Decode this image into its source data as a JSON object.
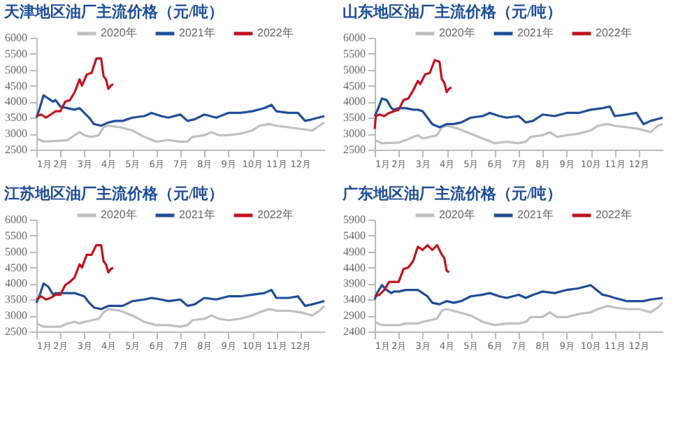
{
  "chart_data": [
    {
      "type": "line",
      "title": "天津地区油厂主流价格（元/吨）",
      "legend": "top",
      "grid": false,
      "xlim": [
        1,
        13
      ],
      "xticks": [
        {
          "value": 1,
          "label": "1月"
        },
        {
          "value": 2,
          "label": "2月"
        },
        {
          "value": 3,
          "label": "3月"
        },
        {
          "value": 4,
          "label": "4月"
        },
        {
          "value": 5,
          "label": "5月"
        },
        {
          "value": 6,
          "label": "6月"
        },
        {
          "value": 7,
          "label": "7月"
        },
        {
          "value": 8,
          "label": "8月"
        },
        {
          "value": 9,
          "label": "9月"
        },
        {
          "value": 10,
          "label": "10月"
        },
        {
          "value": 11,
          "label": "11月"
        },
        {
          "value": 12,
          "label": "12月"
        }
      ],
      "ylim": [
        2500,
        6000
      ],
      "yticks": [
        2500,
        3000,
        3500,
        4000,
        4500,
        5000,
        5500,
        6000
      ],
      "series": [
        {
          "name": "2020年",
          "color": "#c0c0c0",
          "x": [
            1.0,
            1.3,
            2.0,
            2.3,
            2.6,
            2.8,
            3.0,
            3.3,
            3.6,
            3.8,
            4.0,
            4.5,
            5.0,
            5.5,
            6.0,
            6.5,
            7.0,
            7.3,
            7.5,
            8.0,
            8.3,
            8.6,
            9.0,
            9.5,
            10.0,
            10.3,
            10.7,
            11.0,
            11.5,
            12.0,
            12.5,
            12.8,
            13.0
          ],
          "values": [
            2850,
            2750,
            2780,
            2800,
            2950,
            3050,
            2950,
            2900,
            2950,
            3200,
            3250,
            3200,
            3100,
            2900,
            2750,
            2800,
            2750,
            2750,
            2900,
            2950,
            3050,
            2950,
            2950,
            3000,
            3100,
            3250,
            3300,
            3250,
            3200,
            3150,
            3100,
            3250,
            3350
          ]
        },
        {
          "name": "2021年",
          "color": "#1f4e9a",
          "x": [
            1.0,
            1.1,
            1.3,
            1.5,
            1.7,
            1.8,
            2.0,
            2.3,
            2.6,
            2.8,
            3.0,
            3.2,
            3.4,
            3.7,
            4.0,
            4.3,
            4.6,
            5.0,
            5.5,
            5.8,
            6.2,
            6.5,
            7.0,
            7.3,
            7.6,
            8.0,
            8.5,
            9.0,
            9.5,
            10.0,
            10.5,
            10.8,
            11.0,
            11.5,
            11.9,
            12.2,
            12.5,
            13.0
          ],
          "values": [
            3500,
            3700,
            4200,
            4100,
            4000,
            4050,
            3850,
            3800,
            3750,
            3800,
            3650,
            3500,
            3300,
            3250,
            3350,
            3400,
            3400,
            3500,
            3550,
            3650,
            3550,
            3500,
            3600,
            3400,
            3450,
            3600,
            3500,
            3650,
            3650,
            3700,
            3800,
            3900,
            3700,
            3650,
            3650,
            3400,
            3450,
            3550
          ]
        },
        {
          "name": "2022年",
          "color": "#c0141e",
          "x": [
            1.0,
            1.2,
            1.4,
            1.6,
            1.8,
            2.0,
            2.2,
            2.4,
            2.6,
            2.8,
            2.9,
            3.1,
            3.3,
            3.5,
            3.7,
            3.8,
            3.9,
            4.0,
            4.1,
            4.2
          ],
          "values": [
            3550,
            3600,
            3500,
            3600,
            3700,
            3700,
            4000,
            4050,
            4300,
            4700,
            4500,
            4850,
            4900,
            5350,
            5350,
            4800,
            4700,
            4400,
            4500,
            4550
          ]
        }
      ]
    },
    {
      "type": "line",
      "title": "山东地区油厂主流价格（元/吨）",
      "legend": "top",
      "grid": false,
      "xlim": [
        1,
        13
      ],
      "xticks": [
        {
          "value": 1,
          "label": "1月"
        },
        {
          "value": 2,
          "label": "2月"
        },
        {
          "value": 3,
          "label": "3月"
        },
        {
          "value": 4,
          "label": "4月"
        },
        {
          "value": 5,
          "label": "5月"
        },
        {
          "value": 6,
          "label": "6月"
        },
        {
          "value": 7,
          "label": "7月"
        },
        {
          "value": 8,
          "label": "8月"
        },
        {
          "value": 9,
          "label": "9月"
        },
        {
          "value": 10,
          "label": "10月"
        },
        {
          "value": 11,
          "label": "11月"
        },
        {
          "value": 12,
          "label": "12月"
        }
      ],
      "ylim": [
        2500,
        6000
      ],
      "yticks": [
        2500,
        3000,
        3500,
        4000,
        4500,
        5000,
        5500,
        6000
      ],
      "series": [
        {
          "name": "2020年",
          "color": "#c0c0c0",
          "x": [
            1.0,
            1.3,
            2.0,
            2.3,
            2.6,
            2.8,
            3.0,
            3.3,
            3.6,
            3.8,
            4.0,
            4.5,
            5.0,
            5.5,
            6.0,
            6.5,
            7.0,
            7.3,
            7.5,
            8.0,
            8.3,
            8.6,
            9.0,
            9.5,
            10.0,
            10.3,
            10.7,
            11.0,
            11.5,
            12.0,
            12.5,
            12.8,
            13.0
          ],
          "values": [
            2800,
            2700,
            2720,
            2800,
            2900,
            2950,
            2850,
            2900,
            2950,
            3200,
            3250,
            3150,
            3000,
            2850,
            2700,
            2750,
            2700,
            2750,
            2900,
            2950,
            3050,
            2900,
            2950,
            3000,
            3100,
            3250,
            3300,
            3250,
            3200,
            3150,
            3050,
            3250,
            3300
          ]
        },
        {
          "name": "2021年",
          "color": "#1f4e9a",
          "x": [
            1.0,
            1.1,
            1.3,
            1.5,
            1.7,
            1.8,
            2.0,
            2.3,
            2.6,
            2.8,
            3.0,
            3.2,
            3.4,
            3.7,
            4.0,
            4.3,
            4.6,
            5.0,
            5.5,
            5.8,
            6.2,
            6.5,
            7.0,
            7.3,
            7.6,
            8.0,
            8.5,
            9.0,
            9.5,
            10.0,
            10.5,
            10.8,
            11.0,
            11.5,
            11.9,
            12.2,
            12.5,
            13.0
          ],
          "values": [
            3550,
            3700,
            4100,
            4050,
            3800,
            3750,
            3800,
            3800,
            3750,
            3750,
            3700,
            3500,
            3300,
            3200,
            3300,
            3300,
            3350,
            3500,
            3550,
            3650,
            3550,
            3500,
            3550,
            3350,
            3400,
            3600,
            3550,
            3650,
            3650,
            3750,
            3800,
            3850,
            3550,
            3600,
            3650,
            3300,
            3400,
            3500
          ]
        },
        {
          "name": "2022年",
          "color": "#c0141e",
          "x": [
            1.0,
            1.05,
            1.2,
            1.4,
            1.6,
            1.8,
            2.0,
            2.2,
            2.4,
            2.6,
            2.8,
            2.9,
            3.1,
            3.3,
            3.5,
            3.7,
            3.8,
            3.9,
            4.0,
            4.1,
            4.2
          ],
          "values": [
            3150,
            3550,
            3600,
            3550,
            3650,
            3700,
            3750,
            4050,
            4100,
            4350,
            4650,
            4550,
            4850,
            4900,
            5300,
            5250,
            4700,
            4600,
            4300,
            4400,
            4450
          ]
        }
      ]
    },
    {
      "type": "line",
      "title": "江苏地区油厂主流价格（元/吨）",
      "legend": "top",
      "grid": false,
      "xlim": [
        1,
        13
      ],
      "xticks": [
        {
          "value": 1,
          "label": "1月"
        },
        {
          "value": 2,
          "label": "2月"
        },
        {
          "value": 3,
          "label": "3月"
        },
        {
          "value": 4,
          "label": "4月"
        },
        {
          "value": 5,
          "label": "5月"
        },
        {
          "value": 6,
          "label": "6月"
        },
        {
          "value": 7,
          "label": "7月"
        },
        {
          "value": 8,
          "label": "8月"
        },
        {
          "value": 9,
          "label": "9月"
        },
        {
          "value": 10,
          "label": "10月"
        },
        {
          "value": 11,
          "label": "11月"
        },
        {
          "value": 12,
          "label": "12月"
        }
      ],
      "ylim": [
        2500,
        6000
      ],
      "yticks": [
        2500,
        3000,
        3500,
        4000,
        4500,
        5000,
        5500,
        6000
      ],
      "series": [
        {
          "name": "2020年",
          "color": "#c0c0c0",
          "x": [
            1.0,
            1.3,
            2.0,
            2.3,
            2.6,
            2.8,
            3.0,
            3.3,
            3.6,
            3.8,
            4.0,
            4.5,
            5.0,
            5.5,
            6.0,
            6.5,
            7.0,
            7.3,
            7.5,
            8.0,
            8.3,
            8.6,
            9.0,
            9.5,
            10.0,
            10.3,
            10.7,
            11.0,
            11.5,
            12.0,
            12.5,
            12.8,
            13.0
          ],
          "values": [
            2750,
            2650,
            2650,
            2750,
            2800,
            2750,
            2800,
            2850,
            2900,
            3100,
            3200,
            3150,
            3000,
            2800,
            2700,
            2700,
            2650,
            2700,
            2850,
            2900,
            3000,
            2900,
            2850,
            2900,
            3000,
            3100,
            3200,
            3150,
            3150,
            3100,
            3000,
            3150,
            3300
          ]
        },
        {
          "name": "2021年",
          "color": "#1f4e9a",
          "x": [
            1.0,
            1.1,
            1.3,
            1.5,
            1.7,
            1.8,
            2.0,
            2.3,
            2.6,
            2.8,
            3.0,
            3.2,
            3.4,
            3.7,
            4.0,
            4.3,
            4.6,
            5.0,
            5.5,
            5.8,
            6.2,
            6.5,
            7.0,
            7.3,
            7.6,
            8.0,
            8.5,
            9.0,
            9.5,
            10.0,
            10.5,
            10.8,
            11.0,
            11.5,
            11.9,
            12.2,
            12.5,
            13.0
          ],
          "values": [
            3400,
            3550,
            4000,
            3900,
            3650,
            3700,
            3700,
            3700,
            3700,
            3650,
            3600,
            3400,
            3250,
            3200,
            3300,
            3300,
            3300,
            3450,
            3500,
            3550,
            3500,
            3450,
            3500,
            3300,
            3350,
            3550,
            3500,
            3600,
            3600,
            3650,
            3700,
            3800,
            3550,
            3550,
            3600,
            3300,
            3350,
            3450
          ]
        },
        {
          "name": "2022年",
          "color": "#c0141e",
          "x": [
            1.0,
            1.2,
            1.4,
            1.6,
            1.8,
            2.0,
            2.2,
            2.4,
            2.6,
            2.8,
            2.9,
            3.1,
            3.3,
            3.5,
            3.7,
            3.8,
            3.9,
            4.0,
            4.1,
            4.2
          ],
          "values": [
            3500,
            3600,
            3500,
            3550,
            3650,
            3650,
            3950,
            4050,
            4200,
            4600,
            4500,
            4900,
            4900,
            5200,
            5200,
            4700,
            4600,
            4350,
            4450,
            4500
          ]
        }
      ]
    },
    {
      "type": "line",
      "title": "广东地区油厂主流价格（元/吨）",
      "legend": "top",
      "grid": false,
      "xlim": [
        1,
        13
      ],
      "xticks": [
        {
          "value": 1,
          "label": "1月"
        },
        {
          "value": 2,
          "label": "2月"
        },
        {
          "value": 3,
          "label": "3月"
        },
        {
          "value": 4,
          "label": "4月"
        },
        {
          "value": 5,
          "label": "5月"
        },
        {
          "value": 6,
          "label": "6月"
        },
        {
          "value": 7,
          "label": "7月"
        },
        {
          "value": 8,
          "label": "8月"
        },
        {
          "value": 9,
          "label": "9月"
        },
        {
          "value": 10,
          "label": "10月"
        },
        {
          "value": 11,
          "label": "11月"
        },
        {
          "value": 12,
          "label": "12月"
        }
      ],
      "ylim": [
        2400,
        5900
      ],
      "yticks": [
        2400,
        2900,
        3400,
        3900,
        4400,
        4900,
        5400,
        5900
      ],
      "series": [
        {
          "name": "2020年",
          "color": "#c0c0c0",
          "x": [
            1.0,
            1.3,
            2.0,
            2.3,
            2.6,
            2.8,
            3.0,
            3.3,
            3.6,
            3.8,
            4.0,
            4.5,
            5.0,
            5.5,
            6.0,
            6.5,
            7.0,
            7.3,
            7.5,
            8.0,
            8.3,
            8.6,
            9.0,
            9.5,
            10.0,
            10.3,
            10.7,
            11.0,
            11.5,
            12.0,
            12.5,
            12.8,
            13.0
          ],
          "values": [
            2700,
            2600,
            2600,
            2650,
            2650,
            2650,
            2700,
            2750,
            2800,
            3050,
            3100,
            3000,
            2900,
            2700,
            2600,
            2650,
            2650,
            2700,
            2850,
            2850,
            3000,
            2850,
            2850,
            2950,
            3000,
            3100,
            3200,
            3150,
            3100,
            3100,
            3000,
            3150,
            3300
          ]
        },
        {
          "name": "2021年",
          "color": "#1f4e9a",
          "x": [
            1.0,
            1.1,
            1.3,
            1.5,
            1.7,
            1.8,
            2.0,
            2.3,
            2.6,
            2.8,
            3.0,
            3.2,
            3.4,
            3.7,
            4.0,
            4.3,
            4.6,
            5.0,
            5.5,
            5.8,
            6.2,
            6.5,
            7.0,
            7.3,
            7.6,
            8.0,
            8.5,
            9.0,
            9.5,
            10.0,
            10.5,
            10.8,
            11.0,
            11.5,
            11.9,
            12.2,
            12.5,
            13.0
          ],
          "values": [
            3400,
            3600,
            3850,
            3700,
            3600,
            3650,
            3650,
            3700,
            3700,
            3700,
            3600,
            3500,
            3300,
            3250,
            3350,
            3300,
            3350,
            3500,
            3550,
            3600,
            3500,
            3450,
            3550,
            3450,
            3550,
            3650,
            3600,
            3700,
            3750,
            3850,
            3550,
            3500,
            3450,
            3350,
            3350,
            3350,
            3400,
            3450
          ]
        },
        {
          "name": "2022年",
          "color": "#c0141e",
          "x": [
            1.0,
            1.2,
            1.4,
            1.6,
            1.8,
            2.0,
            2.2,
            2.4,
            2.6,
            2.8,
            3.0,
            3.2,
            3.4,
            3.6,
            3.8,
            3.9,
            4.0,
            4.1
          ],
          "values": [
            3500,
            3550,
            3700,
            3950,
            3950,
            3950,
            4350,
            4400,
            4600,
            5050,
            4950,
            5100,
            4950,
            5100,
            4800,
            4700,
            4300,
            4250
          ]
        }
      ]
    }
  ]
}
